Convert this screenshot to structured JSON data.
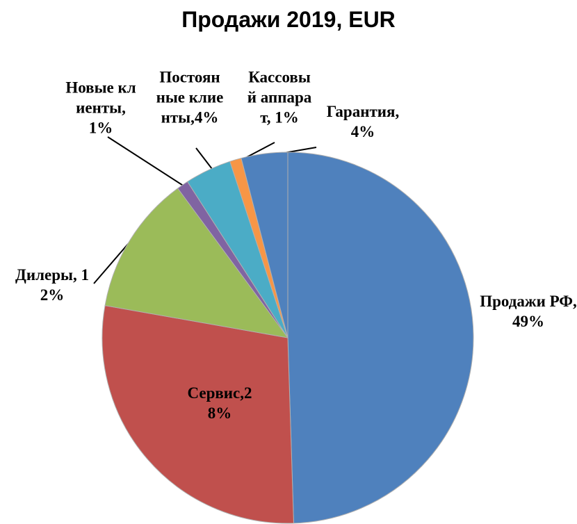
{
  "chart_data": {
    "type": "pie",
    "title": "Продажи 2019, EUR",
    "labels": [
      "Продажи РФ,49%",
      "Сервис,28%",
      "Дилеры, 12%",
      "Новые клиенты,1%",
      "Постоянные клиенты,4%",
      "Кассовый аппарат, 1%",
      "Гарантия,4%"
    ],
    "values": [
      49,
      28,
      12,
      1,
      4,
      1,
      4
    ],
    "colors": [
      "#4f81bd",
      "#c0504d",
      "#9bbb59",
      "#8064a2",
      "#4bacc6",
      "#f79646",
      "#4f81bd"
    ]
  }
}
